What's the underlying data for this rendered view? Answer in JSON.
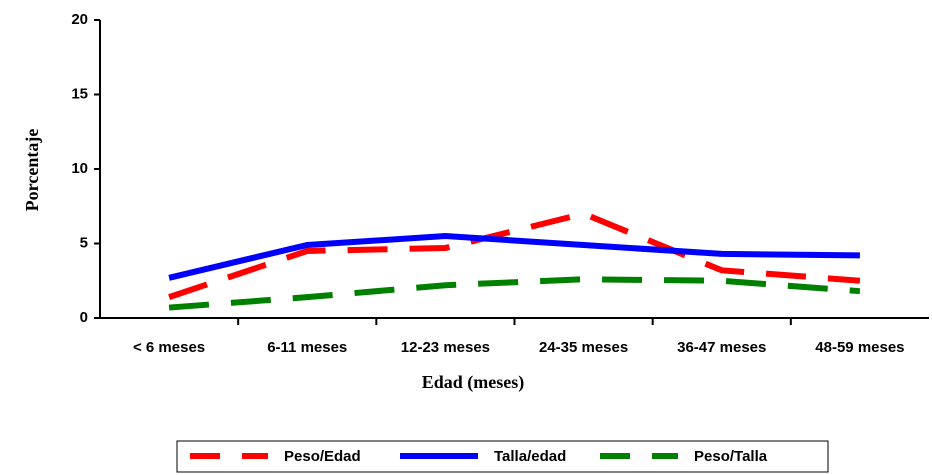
{
  "chart_data": {
    "type": "line",
    "x_label": "Edad (meses)",
    "y_label": "Porcentaje",
    "categories": [
      "< 6 meses",
      "6-11 meses",
      "12-23 meses",
      "24-35 meses",
      "36-47 meses",
      "48-59 meses"
    ],
    "series": [
      {
        "name": "Peso/Edad",
        "color": "#ff0000",
        "dash": true,
        "values": [
          1.4,
          4.5,
          4.7,
          7.0,
          3.2,
          2.5
        ]
      },
      {
        "name": "Talla/edad",
        "color": "#0000ff",
        "dash": false,
        "values": [
          2.7,
          4.9,
          5.5,
          4.9,
          4.3,
          4.2
        ]
      },
      {
        "name": "Peso/Talla",
        "color": "#008000",
        "dash": true,
        "values": [
          0.7,
          1.4,
          2.2,
          2.6,
          2.5,
          1.8
        ]
      }
    ],
    "ylim": [
      0,
      20
    ],
    "yticks": [
      0,
      5,
      10,
      15,
      20
    ],
    "grid": false,
    "legend": "bottom"
  }
}
